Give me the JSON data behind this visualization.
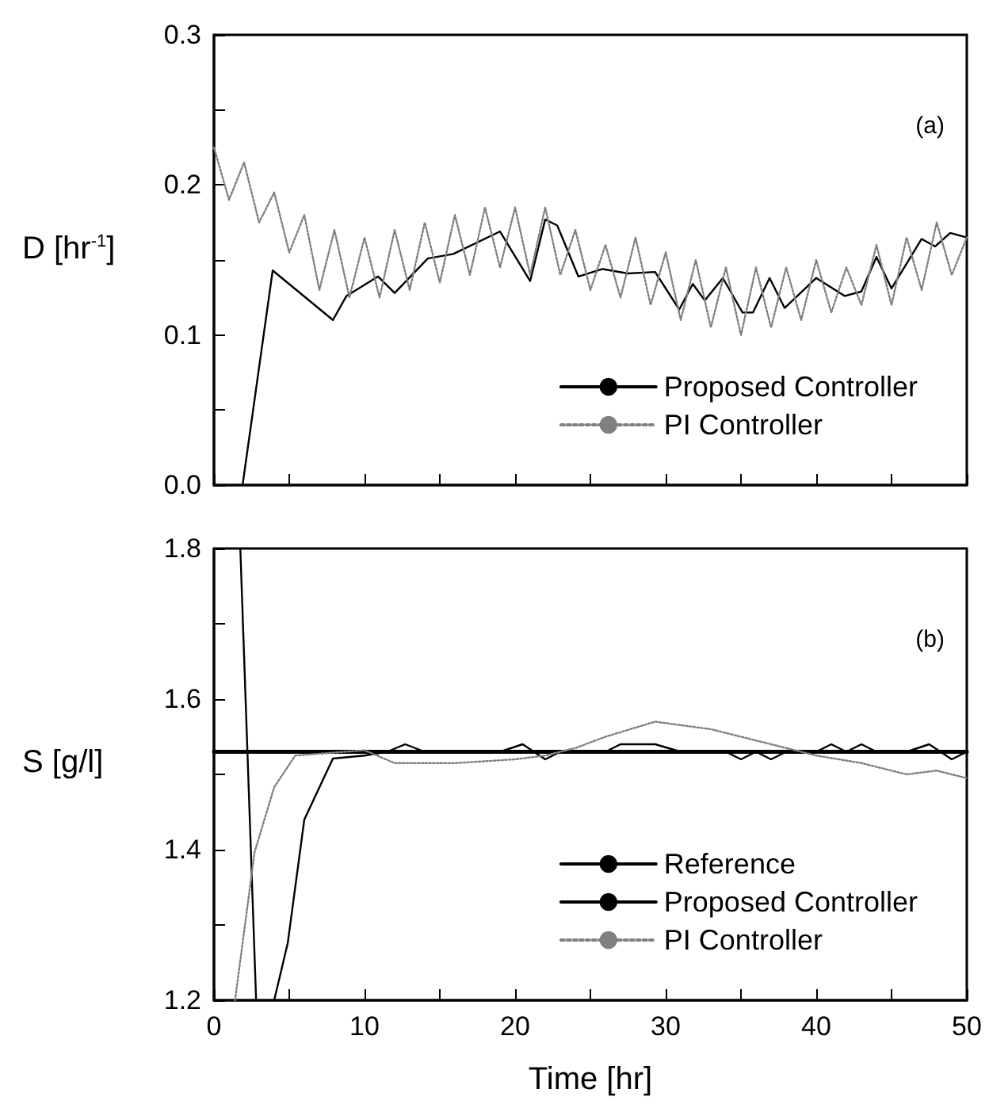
{
  "chart_data": [
    {
      "type": "line",
      "ylabel": "D [hr$^{-1}$]",
      "annotations": [
        "(a)"
      ],
      "xlim": [
        0,
        50
      ],
      "xticks": [
        0,
        {
          "value": 5,
          "label": null
        },
        10,
        {
          "value": 15,
          "label": null
        },
        20,
        {
          "value": 25,
          "label": null
        },
        30,
        {
          "value": 35,
          "label": null
        },
        40,
        {
          "value": 45,
          "label": null
        },
        50
      ],
      "ylim": [
        0,
        0.3
      ],
      "yticks": [
        {
          "value": 0,
          "label": "0.0"
        },
        {
          "value": 0.05,
          "label": null
        },
        0.1,
        {
          "value": 0.15,
          "label": null
        },
        0.2,
        {
          "value": 0.25,
          "label": null
        },
        0.3
      ],
      "tick_labels": "y",
      "grid": false,
      "legend": "bottom right",
      "marker": "none",
      "series": [
        {
          "name": "Proposed Controller",
          "color": "#000000",
          "line_style": "solid",
          "x": [
            1.9,
            3.9,
            7.9,
            8.8,
            10.9,
            12,
            14.2,
            15.9,
            19,
            21,
            22,
            22.8,
            24.2,
            25.8,
            27.5,
            29.3,
            30.9,
            31.8,
            32.6,
            33.8,
            35.1,
            35.8,
            36.9,
            37.9,
            40,
            41.9,
            43,
            44,
            45,
            47,
            47.9,
            48.9,
            50
          ],
          "values": [
            0,
            0.143,
            0.11,
            0.126,
            0.139,
            0.128,
            0.151,
            0.154,
            0.169,
            0.136,
            0.177,
            0.173,
            0.139,
            0.144,
            0.141,
            0.142,
            0.117,
            0.134,
            0.123,
            0.138,
            0.115,
            0.115,
            0.138,
            0.118,
            0.138,
            0.126,
            0.129,
            0.152,
            0.131,
            0.164,
            0.159,
            0.168,
            0.165
          ]
        },
        {
          "name": "PI Controller",
          "color": "#808080",
          "line_style": "dotted",
          "x": [
            0,
            1,
            2,
            3,
            4,
            5,
            6,
            7,
            8,
            9,
            10,
            11,
            12,
            13,
            14,
            15,
            16,
            17,
            18,
            19,
            20,
            21,
            22,
            23,
            24,
            25,
            26,
            27,
            28,
            29,
            30,
            31,
            32,
            33,
            34,
            35,
            36,
            37,
            38,
            39,
            40,
            41,
            42,
            43,
            44,
            45,
            46,
            47,
            48,
            49,
            50
          ],
          "values": [
            0.225,
            0.19,
            0.215,
            0.175,
            0.195,
            0.155,
            0.18,
            0.13,
            0.17,
            0.125,
            0.165,
            0.125,
            0.17,
            0.13,
            0.175,
            0.135,
            0.18,
            0.14,
            0.185,
            0.145,
            0.185,
            0.14,
            0.185,
            0.14,
            0.17,
            0.13,
            0.16,
            0.125,
            0.165,
            0.12,
            0.155,
            0.11,
            0.15,
            0.105,
            0.145,
            0.1,
            0.145,
            0.105,
            0.145,
            0.11,
            0.15,
            0.115,
            0.145,
            0.12,
            0.16,
            0.12,
            0.165,
            0.13,
            0.175,
            0.14,
            0.165
          ]
        }
      ]
    },
    {
      "type": "line",
      "xlabel": "Time [hr]",
      "ylabel": "S [g/l]",
      "annotations": [
        "(b)"
      ],
      "xlim": [
        0,
        50
      ],
      "xticks": [
        0,
        {
          "value": 5,
          "label": null
        },
        10,
        {
          "value": 15,
          "label": null
        },
        20,
        {
          "value": 25,
          "label": null
        },
        30,
        {
          "value": 35,
          "label": null
        },
        40,
        {
          "value": 45,
          "label": null
        },
        50
      ],
      "ylim": [
        1.2,
        1.8
      ],
      "yticks": [
        1.2,
        {
          "value": 1.3,
          "label": null
        },
        1.4,
        {
          "value": 1.5,
          "label": null
        },
        1.6,
        {
          "value": 1.7,
          "label": null
        },
        1.8
      ],
      "grid": false,
      "legend": "bottom right",
      "marker": "none",
      "series": [
        {
          "name": "Reference",
          "color": "#000000",
          "line_style": "solid",
          "x": [
            0,
            50
          ],
          "values": [
            1.53,
            1.53
          ]
        },
        {
          "name": "Proposed Controller",
          "color": "#000000",
          "line_style": "solid",
          "x": [
            1.75,
            2.8,
            3.4,
            4,
            4.9,
            6,
            7.9,
            10,
            11.5,
            12.7,
            14,
            19,
            20.5,
            22,
            23,
            26,
            27,
            29.3,
            31,
            34,
            35,
            36,
            37,
            38,
            40,
            41,
            42,
            43,
            44,
            46,
            47.5,
            49,
            50
          ],
          "values": [
            1.8,
            1.2,
            null,
            1.2,
            1.276,
            1.44,
            1.521,
            1.525,
            1.53,
            1.54,
            1.53,
            1.53,
            1.54,
            1.52,
            1.53,
            1.53,
            1.54,
            1.54,
            1.53,
            1.53,
            1.52,
            1.53,
            1.52,
            1.53,
            1.53,
            1.54,
            1.53,
            1.54,
            1.53,
            1.53,
            1.54,
            1.52,
            1.53
          ]
        },
        {
          "name": "PI Controller",
          "color": "#808080",
          "line_style": "dotted",
          "x": [
            1.4,
            2.7,
            4,
            5.4,
            10,
            12,
            16,
            20,
            22,
            24,
            26,
            29.3,
            33,
            36,
            38,
            40,
            43,
            46,
            48,
            50
          ],
          "values": [
            1.2,
            1.397,
            1.483,
            1.525,
            1.532,
            1.515,
            1.515,
            1.52,
            1.525,
            1.535,
            1.55,
            1.57,
            1.56,
            1.545,
            1.535,
            1.525,
            1.515,
            1.5,
            1.505,
            1.495
          ]
        }
      ]
    }
  ]
}
